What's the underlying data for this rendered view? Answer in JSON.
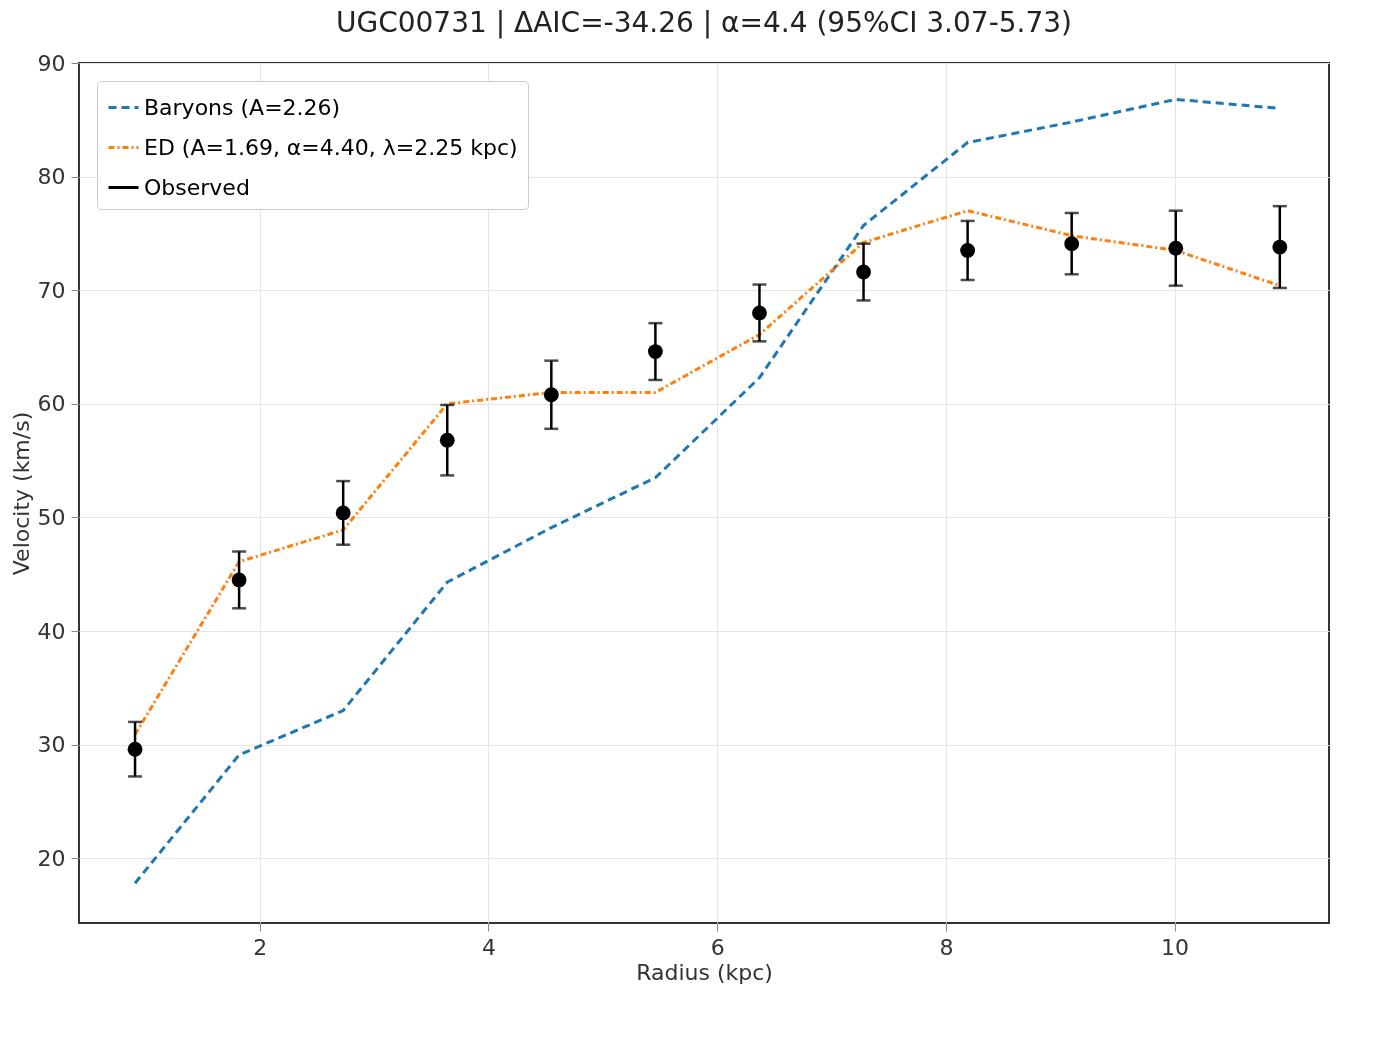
{
  "chart_data": {
    "type": "line",
    "title": "UGC00731 | ΔAIC=-34.26 | α=4.4 (95%CI 3.07-5.73)",
    "xlabel": "Radius (kpc)",
    "ylabel": "Velocity (km/s)",
    "x": [
      0.91,
      1.82,
      2.73,
      3.64,
      4.55,
      5.46,
      6.37,
      7.28,
      8.19,
      9.1,
      10.01,
      10.92
    ],
    "series": [
      {
        "name": "Baryons (A=2.26)",
        "color": "#1f77b4",
        "line_style": "dashed",
        "values": [
          17.8,
          29.1,
          33.0,
          44.3,
          49.1,
          53.5,
          62.3,
          75.7,
          83.0,
          84.8,
          86.8,
          86.0
        ]
      },
      {
        "name": "ED (A=1.69, α=4.40, λ=2.25 kpc)",
        "color": "#ff7f0e",
        "line_style": "dashdot",
        "values": [
          30.9,
          46.1,
          48.9,
          60.0,
          61.0,
          61.0,
          66.1,
          74.2,
          77.0,
          74.8,
          73.5,
          70.4
        ]
      },
      {
        "name": "Observed",
        "type": "scatter",
        "color": "#000000",
        "marker": "circle",
        "values": [
          29.6,
          44.5,
          50.4,
          56.8,
          60.8,
          64.6,
          68.0,
          71.6,
          73.5,
          74.1,
          73.7,
          73.8
        ],
        "errors": [
          2.4,
          2.5,
          2.8,
          3.1,
          3.0,
          2.5,
          2.5,
          2.5,
          2.6,
          2.7,
          3.3,
          3.6
        ]
      }
    ],
    "xlim": [
      0.42,
      11.35
    ],
    "ylim": [
      14.3,
      90
    ],
    "xticks": [
      2,
      4,
      6,
      8,
      10
    ],
    "yticks": [
      20,
      30,
      40,
      50,
      60,
      70,
      80,
      90
    ],
    "grid": true,
    "legend": "top left"
  }
}
